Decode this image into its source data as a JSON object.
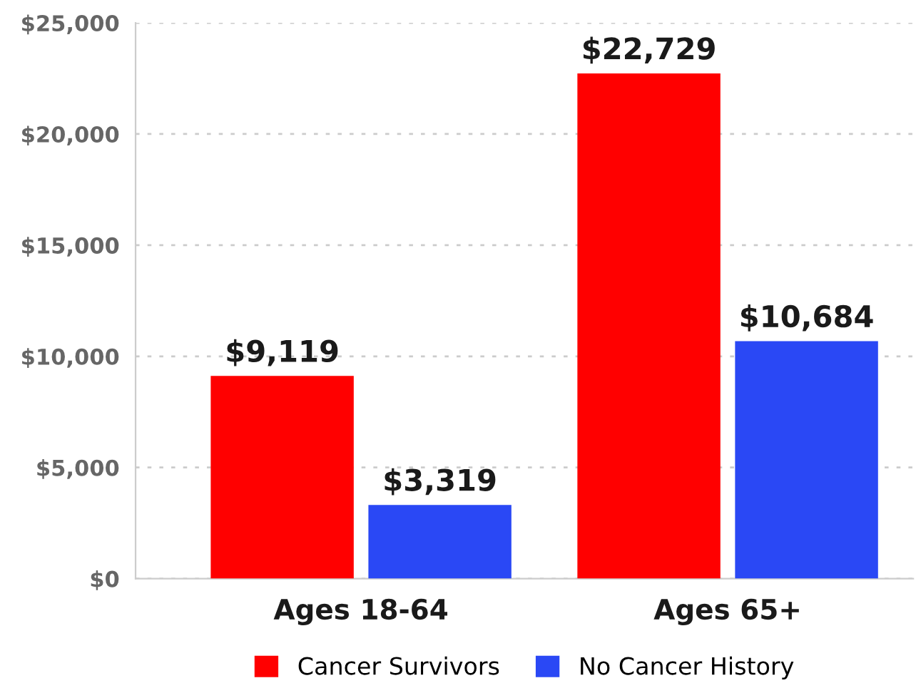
{
  "chart_data": {
    "type": "bar",
    "categories": [
      "Ages 18-64",
      "Ages 65+"
    ],
    "series": [
      {
        "name": "Cancer Survivors",
        "color": "#ff0000",
        "values": [
          9119,
          22729
        ],
        "value_labels": [
          "$9,119",
          "$22,729"
        ]
      },
      {
        "name": "No Cancer History",
        "color": "#2a48f5",
        "values": [
          3319,
          10684
        ],
        "value_labels": [
          "$3,319",
          "$10,684"
        ]
      }
    ],
    "ylim": [
      0,
      25000
    ],
    "yticks": [
      {
        "value": 0,
        "label": "$0"
      },
      {
        "value": 5000,
        "label": "$5,000"
      },
      {
        "value": 10000,
        "label": "$10,000"
      },
      {
        "value": 15000,
        "label": "$15,000"
      },
      {
        "value": 20000,
        "label": "$20,000"
      },
      {
        "value": 25000,
        "label": "$25,000"
      }
    ],
    "grid": "y",
    "legend": "bottom"
  }
}
